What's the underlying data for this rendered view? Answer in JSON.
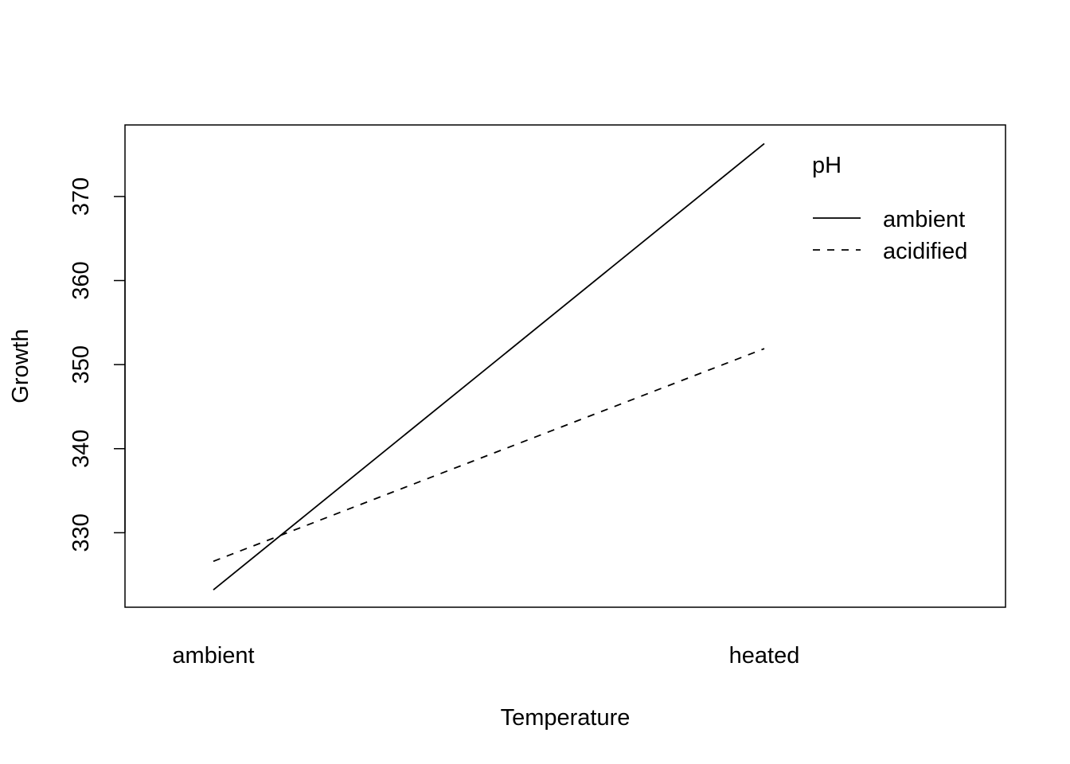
{
  "chart_data": {
    "type": "line",
    "title": "",
    "xlabel": "Temperature",
    "ylabel": "Growth",
    "categories": [
      "ambient",
      "heated"
    ],
    "yticks": [
      330,
      340,
      350,
      360,
      370
    ],
    "ylim": [
      321,
      378.5
    ],
    "grid": false,
    "legend": {
      "title": "pH",
      "placement": "top-right",
      "entries": [
        "ambient",
        "acidified"
      ]
    },
    "series": [
      {
        "name": "ambient",
        "values": [
          323.2,
          376.3
        ],
        "line_style": "solid",
        "color": "#000000"
      },
      {
        "name": "acidified",
        "values": [
          326.6,
          351.9
        ],
        "line_style": "dashed",
        "color": "#000000"
      }
    ]
  }
}
